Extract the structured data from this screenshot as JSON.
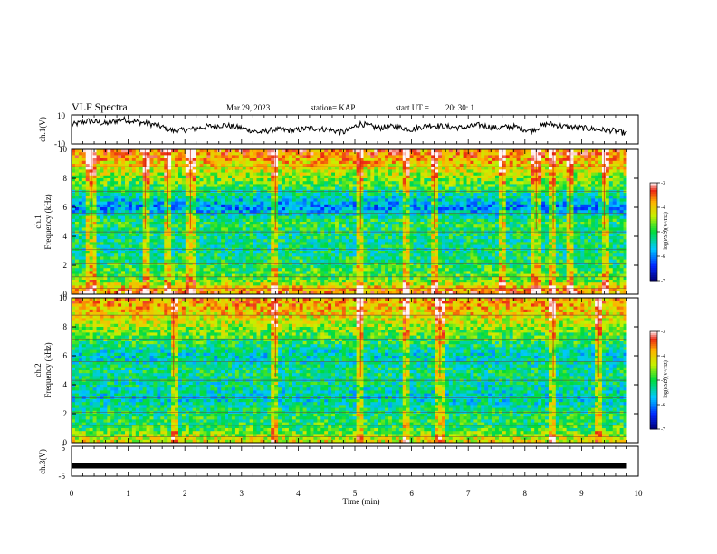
{
  "header": {
    "title": "VLF Spectra",
    "date": "Mar.29, 2023",
    "station": "station= KAP",
    "start_label": "start UT =",
    "start_time": "20: 30: 1"
  },
  "chart_data": [
    {
      "type": "line",
      "panel": "ch1-waveform",
      "ylabel": "ch.1(V)",
      "ylim": [
        -10,
        10
      ],
      "yticks": [
        "10",
        "-10"
      ],
      "xlim": [
        0,
        10
      ],
      "x": [
        0,
        0.3,
        0.6,
        0.9,
        1.2,
        1.5,
        1.8,
        2.1,
        2.4,
        2.7,
        3.0,
        3.3,
        3.6,
        3.9,
        4.2,
        4.5,
        4.8,
        5.1,
        5.4,
        5.7,
        6.0,
        6.3,
        6.6,
        6.9,
        7.2,
        7.5,
        7.8,
        8.1,
        8.4,
        8.7,
        9.0,
        9.3,
        9.6,
        9.8
      ],
      "y": [
        3,
        6,
        4,
        7,
        5,
        3,
        -1,
        0,
        2,
        3,
        1,
        -2,
        0,
        -1,
        1,
        0,
        -2,
        4,
        1,
        2,
        0,
        3,
        2,
        1,
        3,
        1,
        2,
        -1,
        4,
        2,
        1,
        0,
        -1,
        -3
      ],
      "color": "#000000"
    },
    {
      "type": "heatmap",
      "panel": "ch1-spectrogram",
      "ylabel": "ch.1",
      "ylabel2": "Frequency (kHz)",
      "ylim": [
        0,
        10
      ],
      "yticks": [
        "0",
        "2",
        "4",
        "6",
        "8",
        "10"
      ],
      "xlim": [
        0,
        10
      ],
      "colorbar": {
        "label": "log(PSD)(V²/Hz)",
        "range": [
          -7,
          -3
        ],
        "ticks": [
          "-3",
          "-4",
          "-5",
          "-6",
          "-7"
        ]
      },
      "freq_profile": [
        {
          "f": 0.2,
          "level": -3.6
        },
        {
          "f": 1.0,
          "level": -4.8
        },
        {
          "f": 2.0,
          "level": -5.0
        },
        {
          "f": 3.0,
          "level": -5.3
        },
        {
          "f": 4.0,
          "level": -5.2
        },
        {
          "f": 5.0,
          "level": -5.0
        },
        {
          "f": 6.0,
          "level": -6.0
        },
        {
          "f": 7.0,
          "level": -5.2
        },
        {
          "f": 8.0,
          "level": -4.6
        },
        {
          "f": 9.0,
          "level": -4.0
        },
        {
          "f": 9.8,
          "level": -3.6
        }
      ],
      "vertical_events_min": [
        0.35,
        1.3,
        1.7,
        2.1,
        3.6,
        5.1,
        5.9,
        6.4,
        7.6,
        8.2,
        8.5,
        8.8,
        9.4
      ]
    },
    {
      "type": "heatmap",
      "panel": "ch2-spectrogram",
      "ylabel": "ch.2",
      "ylabel2": "Frequency (kHz)",
      "ylim": [
        0,
        10
      ],
      "yticks": [
        "0",
        "2",
        "4",
        "6",
        "8",
        "10"
      ],
      "xlim": [
        0,
        10
      ],
      "colorbar": {
        "label": "log(PSD)(V²/Hz)",
        "range": [
          -7,
          -3
        ],
        "ticks": [
          "-3",
          "-4",
          "-5",
          "-6",
          "-7"
        ]
      },
      "freq_profile": [
        {
          "f": 0.2,
          "level": -4.2
        },
        {
          "f": 1.0,
          "level": -5.0
        },
        {
          "f": 2.0,
          "level": -5.1
        },
        {
          "f": 3.0,
          "level": -5.5
        },
        {
          "f": 4.0,
          "level": -5.3
        },
        {
          "f": 5.0,
          "level": -5.2
        },
        {
          "f": 6.0,
          "level": -5.5
        },
        {
          "f": 7.0,
          "level": -5.0
        },
        {
          "f": 8.0,
          "level": -4.5
        },
        {
          "f": 9.0,
          "level": -4.0
        },
        {
          "f": 9.8,
          "level": -3.8
        }
      ],
      "vertical_events_min": [
        1.8,
        3.6,
        5.1,
        5.9,
        6.5,
        8.5,
        9.3
      ]
    },
    {
      "type": "line",
      "panel": "ch3-waveform",
      "ylabel": "ch.3(V)",
      "ylim": [
        -5,
        5
      ],
      "yticks": [
        "5",
        "-5"
      ],
      "xlim": [
        0,
        10
      ],
      "x": [
        0,
        9.8
      ],
      "y": [
        -1.5,
        -1.5
      ],
      "color": "#000000"
    }
  ],
  "xaxis": {
    "label": "Time (min)",
    "ticks": [
      "0",
      "1",
      "2",
      "3",
      "4",
      "5",
      "6",
      "7",
      "8",
      "9",
      "10"
    ]
  }
}
